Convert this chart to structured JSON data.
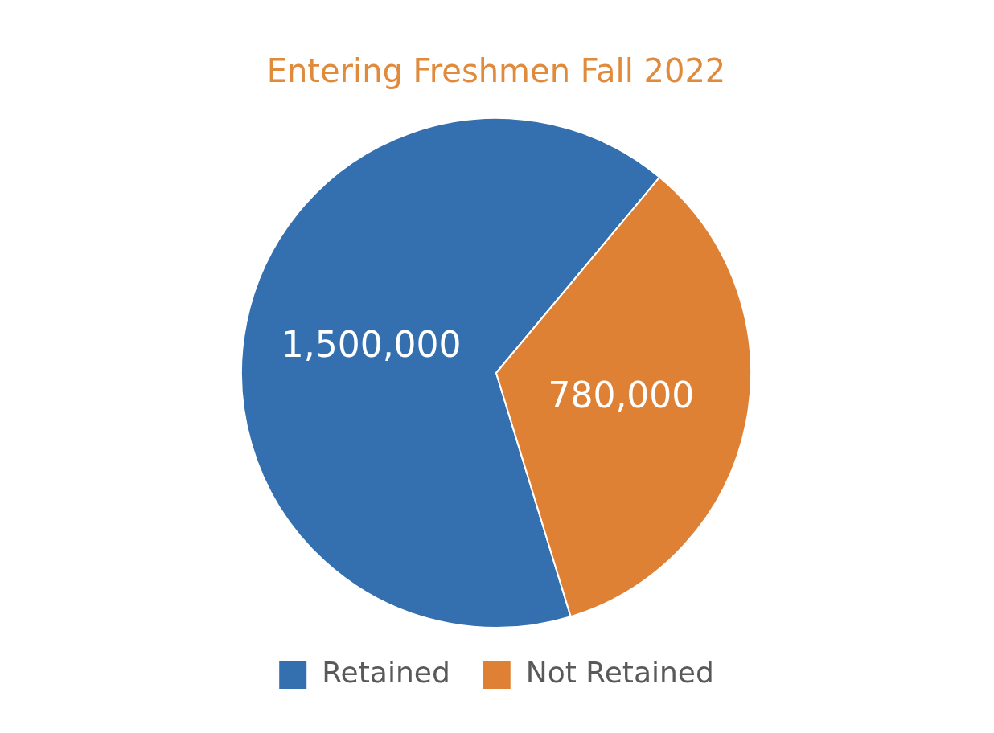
{
  "chart_data": {
    "type": "pie",
    "title": "Entering Freshmen Fall 2022",
    "categories": [
      "Retained",
      "Not Retained"
    ],
    "values": [
      1500000,
      780000
    ],
    "colors": [
      "#3470b0",
      "#df8134"
    ],
    "value_labels": [
      "1,500,000",
      "780,000"
    ],
    "legend": "bottom"
  }
}
